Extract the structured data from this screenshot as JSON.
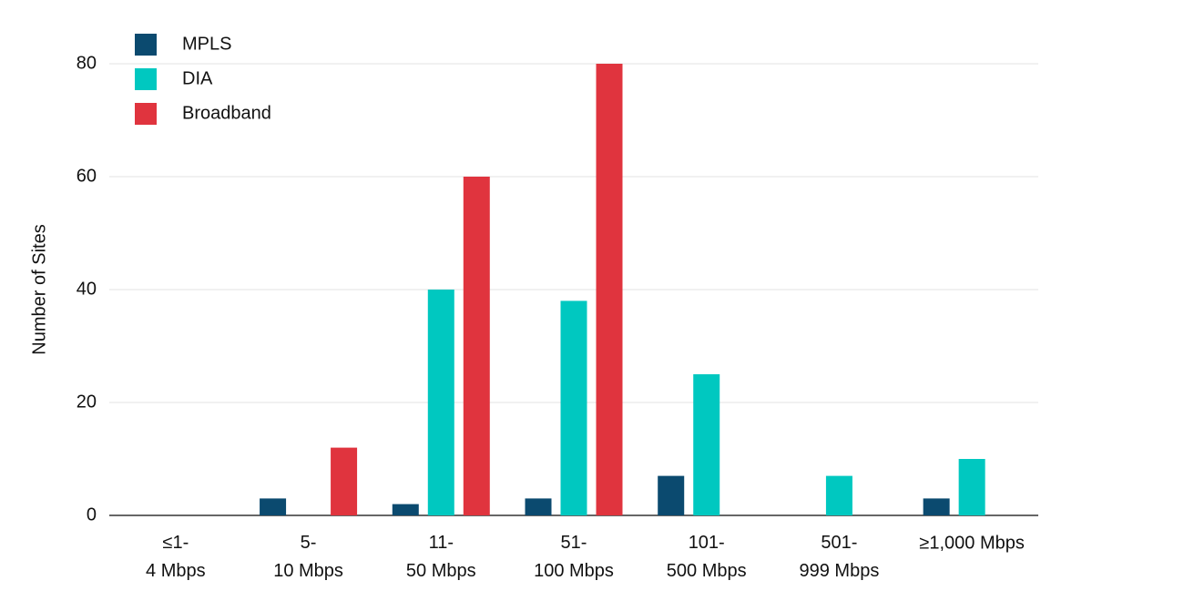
{
  "chart_data": {
    "type": "bar",
    "y_label": "Number of Sites",
    "categories": [
      "≤1-\n4 Mbps",
      "5-\n10 Mbps",
      "11-\n50 Mbps",
      "51-\n100 Mbps",
      "101-\n500 Mbps",
      "501-\n999 Mbps",
      "≥1,000 Mbps"
    ],
    "series": [
      {
        "name": "MPLS",
        "color": "#0b4a6f",
        "values": [
          0,
          3,
          2,
          3,
          7,
          0,
          3
        ]
      },
      {
        "name": "DIA",
        "color": "#00c8c0",
        "values": [
          0,
          0,
          40,
          38,
          25,
          7,
          10
        ]
      },
      {
        "name": "Broadband",
        "color": "#e0343e",
        "values": [
          0,
          12,
          60,
          80,
          0,
          0,
          0
        ]
      }
    ],
    "ylim": [
      0,
      80
    ],
    "yticks": [
      0,
      20,
      40,
      60,
      80
    ],
    "grid": true,
    "legend": "top-left"
  }
}
